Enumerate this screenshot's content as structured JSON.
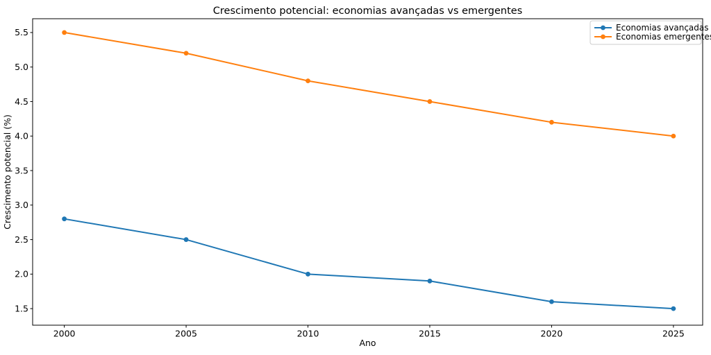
{
  "chart_data": {
    "type": "line",
    "title": "Crescimento potencial: economias avançadas vs emergentes",
    "xlabel": "Ano",
    "ylabel": "Crescimento potencial (%)",
    "x": [
      2000,
      2005,
      2010,
      2015,
      2020,
      2025
    ],
    "series": [
      {
        "name": "Economias avançadas",
        "color": "#1f77b4",
        "values": [
          2.8,
          2.5,
          2.0,
          1.9,
          1.6,
          1.5
        ]
      },
      {
        "name": "Economias emergentes",
        "color": "#ff7f0e",
        "values": [
          5.5,
          5.2,
          4.8,
          4.5,
          4.2,
          4.0
        ]
      }
    ],
    "xticks": [
      2000,
      2005,
      2010,
      2015,
      2020,
      2025
    ],
    "xtick_labels": [
      "2000",
      "2005",
      "2010",
      "2015",
      "2020",
      "2025"
    ],
    "yticks": [
      1.5,
      2.0,
      2.5,
      3.0,
      3.5,
      4.0,
      4.5,
      5.0,
      5.5
    ],
    "ytick_labels": [
      "1.5",
      "2.0",
      "2.5",
      "3.0",
      "3.5",
      "4.0",
      "4.5",
      "5.0",
      "5.5"
    ],
    "xlim": [
      1998.7,
      2026.2
    ],
    "ylim": [
      1.26,
      5.7
    ],
    "grid": false,
    "legend_position": "upper right",
    "colors": {
      "background": "#ffffff",
      "spine": "#000000",
      "text": "#000000",
      "legend_border": "#cccccc"
    }
  }
}
